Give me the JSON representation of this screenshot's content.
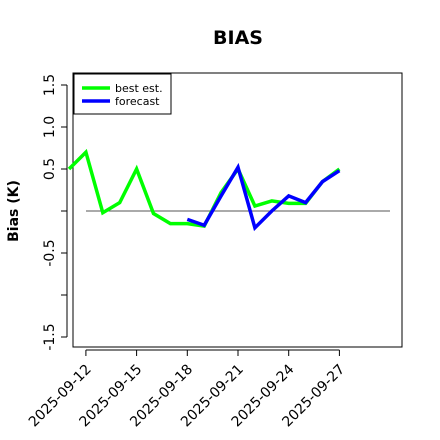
{
  "chart_data": {
    "type": "line",
    "title": "BIAS",
    "ylabel": "Bias (K)",
    "xlabel": "",
    "ylim": [
      -1.6,
      1.65
    ],
    "yticks": [
      -1.5,
      -1.0,
      -0.5,
      0.0,
      0.5,
      1.0,
      1.5
    ],
    "ytick_labels": [
      "-1.5",
      "",
      "-0.5",
      "",
      "0.5",
      "1.0",
      "1.5"
    ],
    "x_tick_dates": [
      "2025-09-12",
      "2025-09-15",
      "2025-09-18",
      "2025-09-21",
      "2025-09-24",
      "2025-09-27"
    ],
    "highlight_tick": "2025-09-18",
    "reference_line": 0,
    "grid": false,
    "legend_position": "top-left",
    "series": [
      {
        "name": "best est.",
        "color": "#00ff00",
        "x": [
          "2025-09-11",
          "2025-09-12",
          "2025-09-13",
          "2025-09-14",
          "2025-09-15",
          "2025-09-16",
          "2025-09-17",
          "2025-09-18",
          "2025-09-19",
          "2025-09-20",
          "2025-09-21",
          "2025-09-22",
          "2025-09-23",
          "2025-09-24",
          "2025-09-25",
          "2025-09-26",
          "2025-09-27"
        ],
        "values": [
          0.5,
          0.7,
          -0.02,
          0.1,
          0.5,
          -0.03,
          -0.15,
          -0.15,
          -0.18,
          0.22,
          0.5,
          0.06,
          0.12,
          0.09,
          0.09,
          0.35,
          0.5
        ]
      },
      {
        "name": "forecast",
        "color": "#0000ff",
        "x": [
          "2025-09-18",
          "2025-09-19",
          "2025-09-20",
          "2025-09-21",
          "2025-09-22",
          "2025-09-23",
          "2025-09-24",
          "2025-09-25",
          "2025-09-26",
          "2025-09-27"
        ],
        "values": [
          -0.1,
          -0.17,
          0.18,
          0.52,
          -0.2,
          0.0,
          0.18,
          0.1,
          0.35,
          0.48
        ]
      }
    ]
  }
}
